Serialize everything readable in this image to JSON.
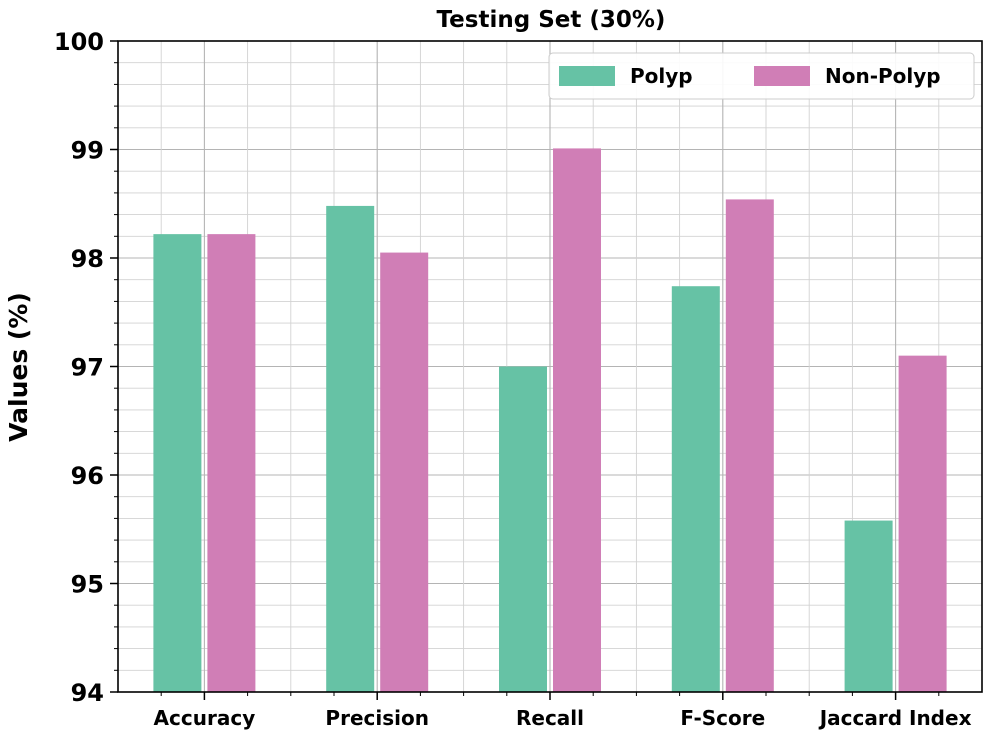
{
  "chart_data": {
    "type": "bar",
    "title": "Testing Set (30%)",
    "xlabel": "",
    "ylabel": "Values (%)",
    "categories": [
      "Accuracy",
      "Precision",
      "Recall",
      "F-Score",
      "Jaccard Index"
    ],
    "series": [
      {
        "name": "Polyp",
        "color": "#66c2a5",
        "values": [
          98.22,
          98.48,
          97.0,
          97.74,
          95.58
        ]
      },
      {
        "name": "Non-Polyp",
        "color": "#d07eb6",
        "values": [
          98.22,
          98.05,
          99.01,
          98.54,
          97.1
        ]
      }
    ],
    "ylim": [
      94,
      100
    ],
    "yticks": [
      "94",
      "95",
      "96",
      "97",
      "98",
      "99",
      "100"
    ],
    "grid": true,
    "legend": "top-right"
  }
}
